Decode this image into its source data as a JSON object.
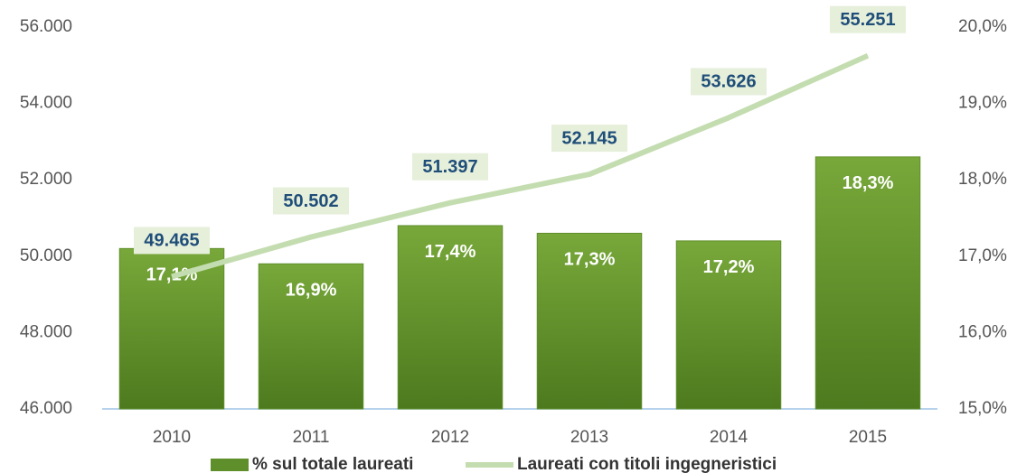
{
  "chart_data": {
    "type": "bar",
    "categories": [
      "2010",
      "2011",
      "2012",
      "2013",
      "2014",
      "2015"
    ],
    "series": [
      {
        "name": "% sul totale laureati",
        "type": "bar",
        "axis": "y2",
        "color": "#5f8f2a",
        "values": [
          17.1,
          16.9,
          17.4,
          17.3,
          17.2,
          18.3
        ],
        "value_labels": [
          "17,1%",
          "16,9%",
          "17,4%",
          "17,3%",
          "17,2%",
          "18,3%"
        ]
      },
      {
        "name": "Laureati con titoli ingegneristici",
        "type": "line",
        "color": "#c4ddb0",
        "values": [
          49465,
          50502,
          51397,
          52145,
          53626,
          55251
        ],
        "value_labels": [
          "49.465",
          "50.502",
          "51.397",
          "52.145",
          "53.626",
          "55.251"
        ]
      }
    ],
    "ylim": [
      46000,
      56000
    ],
    "yticks": [
      {
        "value": 46000,
        "label": "46.000"
      },
      {
        "value": 48000,
        "label": "48.000"
      },
      {
        "value": 50000,
        "label": "50.000"
      },
      {
        "value": 52000,
        "label": "52.000"
      },
      {
        "value": 54000,
        "label": "54.000"
      },
      {
        "value": 56000,
        "label": "56.000"
      }
    ],
    "y2lim": [
      15,
      20
    ],
    "y2ticks": [
      {
        "value": 15,
        "label": "15,0%"
      },
      {
        "value": 16,
        "label": "16,0%"
      },
      {
        "value": 17,
        "label": "17,0%"
      },
      {
        "value": 18,
        "label": "18,0%"
      },
      {
        "value": 19,
        "label": "19,0%"
      },
      {
        "value": 20,
        "label": "20,0%"
      }
    ],
    "legend": "bottom"
  }
}
